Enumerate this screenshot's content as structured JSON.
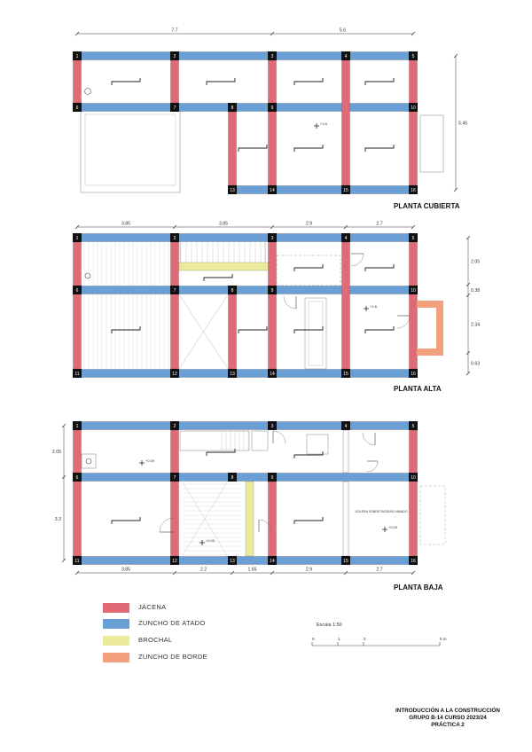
{
  "plans": {
    "cubierta": {
      "title": "PLANTA CUBIERTA",
      "dims_top": [
        "7.7",
        "5.6"
      ],
      "dim_right": "5.45",
      "level": "+3.8",
      "columns": [
        "1",
        "2",
        "3",
        "4",
        "5",
        "6",
        "7",
        "8",
        "9",
        "10",
        "13",
        "14",
        "15",
        "16"
      ]
    },
    "alta": {
      "title": "PLANTA ALTA",
      "dims_top": [
        "3.85",
        "3.85",
        "2.9",
        "2.7"
      ],
      "dims_right": [
        "2.05",
        "0.38",
        "2.34",
        "0.63"
      ],
      "level": "+2.8",
      "columns": [
        "1",
        "2",
        "3",
        "4",
        "5",
        "6",
        "7",
        "8",
        "9",
        "10",
        "11",
        "12",
        "13",
        "14",
        "15",
        "16"
      ]
    },
    "baja": {
      "title": "PLANTA BAJA",
      "dims_bottom": [
        "3.85",
        "2.2",
        "1.65",
        "2.9",
        "2.7"
      ],
      "dims_left": [
        "2.05",
        "3.3"
      ],
      "levels": [
        "+0.00",
        "+0.00",
        "+0.00"
      ],
      "room_label": "SOLERA SOBRE RIGIDAS HIMADO",
      "columns": [
        "1",
        "2",
        "3",
        "4",
        "5",
        "6",
        "7",
        "8",
        "9",
        "10",
        "11",
        "12",
        "13",
        "14",
        "15",
        "16"
      ]
    }
  },
  "legend": [
    {
      "label": "JÁCENA",
      "color": "#e06a75"
    },
    {
      "label": "ZUNCHO DE ATADO",
      "color": "#6a9fd6"
    },
    {
      "label": "BROCHAL",
      "color": "#eceb9c"
    },
    {
      "label": "ZUNCHO DE BORDE",
      "color": "#f2a07d"
    }
  ],
  "scale": {
    "label": "Escala 1:50",
    "ticks": [
      "0",
      "1",
      "2",
      "5 m"
    ]
  },
  "footer": {
    "line1": "INTRODUCCIÓN A LA CONSTRUCCIÓN",
    "line2": "GRUPO B-14      CURSO 2023/24",
    "line3": "PRÁCTICA 2"
  }
}
